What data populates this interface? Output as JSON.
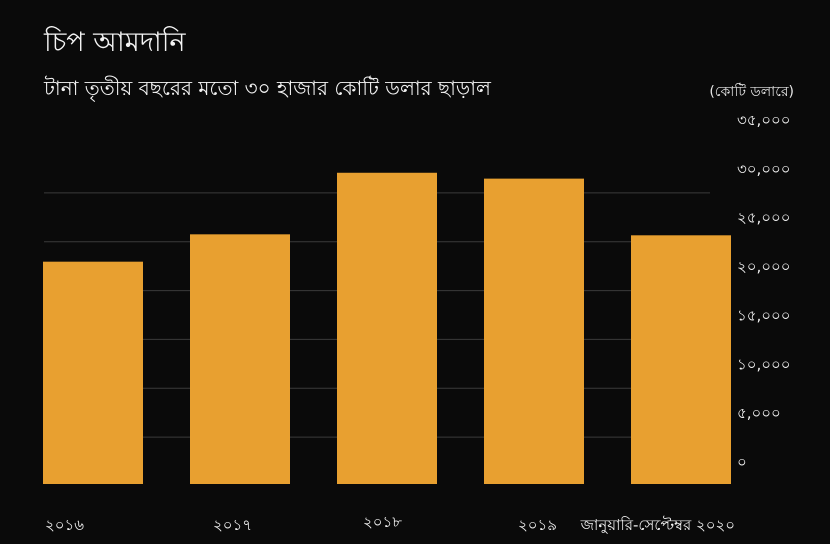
{
  "title": "চিপ আমদানি",
  "subtitle": "টানা তৃতীয় বছরের মতো ৩০ হাজার কোটি ডলার ছাড়াল",
  "colors": {
    "background": "#0a0a0a",
    "bar": "#e8a030",
    "grid": "#3a3a3a",
    "text": "#f2f2f2"
  },
  "chart_data": {
    "type": "bar",
    "title": "চিপ আমদানি",
    "subtitle": "টানা তৃতীয় বছরের মতো ৩০ হাজার কোটি ডলার ছাড়াল",
    "unit_label": "(কোটি ডলারে)",
    "categories": [
      "২০১৬",
      "২০১৭",
      "২০১৮",
      "২০১৯",
      "জানুয়ারি-সেপ্টেম্বর ২০২০"
    ],
    "values": [
      20500,
      23300,
      29600,
      29000,
      23200
    ],
    "ylim": [
      0,
      35000
    ],
    "yticks": [
      0,
      5000,
      10000,
      15000,
      20000,
      25000,
      30000,
      35000
    ],
    "ytick_labels": [
      "০",
      "৫,০০০",
      "১০,০০০",
      "১৫,০০০",
      "২০,০০০",
      "২৫,০০০",
      "৩০,০০০",
      "৩৫,০০০"
    ],
    "grid": true,
    "y_axis_side": "right"
  }
}
